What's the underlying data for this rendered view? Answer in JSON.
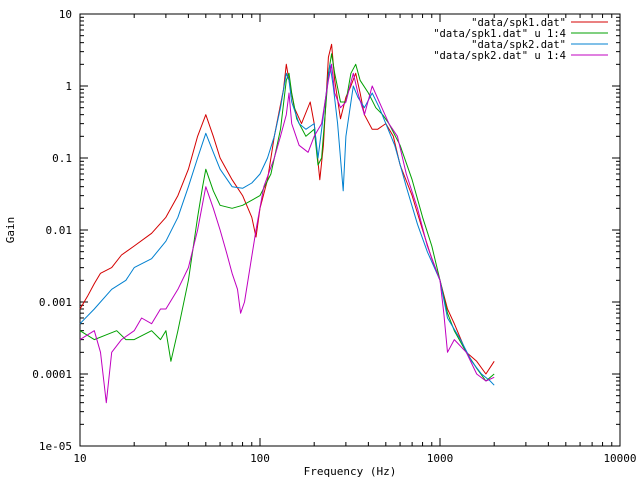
{
  "chart_data": {
    "type": "line",
    "title": "",
    "xlabel": "Frequency (Hz)",
    "ylabel": "Gain",
    "xscale": "log",
    "yscale": "log",
    "xlim": [
      10,
      10000
    ],
    "ylim": [
      1e-05,
      10
    ],
    "grid": false,
    "legend_position": "top-right",
    "x_ticks": [
      {
        "value": 10,
        "label": "10"
      },
      {
        "value": 100,
        "label": "100"
      },
      {
        "value": 1000,
        "label": "1000"
      },
      {
        "value": 10000,
        "label": "10000"
      }
    ],
    "y_ticks": [
      {
        "value": 10,
        "label": "10"
      },
      {
        "value": 1,
        "label": "1"
      },
      {
        "value": 0.1,
        "label": "0.1"
      },
      {
        "value": 0.01,
        "label": "0.01"
      },
      {
        "value": 0.001,
        "label": "0.001"
      },
      {
        "value": 0.0001,
        "label": "0.0001"
      },
      {
        "value": 1e-05,
        "label": "1e-05"
      }
    ],
    "series": [
      {
        "name": "\"data/spk1.dat\"",
        "color": "#d40000",
        "points": [
          [
            10,
            0.0008
          ],
          [
            11,
            0.0012
          ],
          [
            12,
            0.0018
          ],
          [
            13,
            0.0025
          ],
          [
            15,
            0.003
          ],
          [
            17,
            0.0045
          ],
          [
            20,
            0.006
          ],
          [
            25,
            0.009
          ],
          [
            30,
            0.015
          ],
          [
            35,
            0.03
          ],
          [
            40,
            0.07
          ],
          [
            45,
            0.2
          ],
          [
            50,
            0.4
          ],
          [
            55,
            0.2
          ],
          [
            60,
            0.1
          ],
          [
            70,
            0.05
          ],
          [
            80,
            0.03
          ],
          [
            90,
            0.015
          ],
          [
            95,
            0.008
          ],
          [
            100,
            0.02
          ],
          [
            110,
            0.05
          ],
          [
            120,
            0.2
          ],
          [
            135,
            0.9
          ],
          [
            140,
            2.0
          ],
          [
            145,
            1.2
          ],
          [
            155,
            0.5
          ],
          [
            170,
            0.3
          ],
          [
            190,
            0.6
          ],
          [
            200,
            0.3
          ],
          [
            215,
            0.05
          ],
          [
            225,
            0.15
          ],
          [
            240,
            2.5
          ],
          [
            250,
            3.8
          ],
          [
            260,
            1.2
          ],
          [
            280,
            0.35
          ],
          [
            300,
            0.7
          ],
          [
            320,
            1.0
          ],
          [
            340,
            1.5
          ],
          [
            360,
            0.8
          ],
          [
            380,
            0.4
          ],
          [
            420,
            0.25
          ],
          [
            450,
            0.25
          ],
          [
            500,
            0.3
          ],
          [
            550,
            0.2
          ],
          [
            600,
            0.08
          ],
          [
            700,
            0.03
          ],
          [
            800,
            0.01
          ],
          [
            900,
            0.004
          ],
          [
            1000,
            0.002
          ],
          [
            1100,
            0.0008
          ],
          [
            1200,
            0.0005
          ],
          [
            1400,
            0.0002
          ],
          [
            1600,
            0.00015
          ],
          [
            1800,
            0.0001
          ],
          [
            2000,
            0.00015
          ]
        ]
      },
      {
        "name": "\"data/spk1.dat\" u 1:4",
        "color": "#00a000",
        "points": [
          [
            10,
            0.0004
          ],
          [
            12,
            0.0003
          ],
          [
            14,
            0.00035
          ],
          [
            16,
            0.0004
          ],
          [
            18,
            0.0003
          ],
          [
            20,
            0.0003
          ],
          [
            25,
            0.0004
          ],
          [
            28,
            0.0003
          ],
          [
            30,
            0.0004
          ],
          [
            32,
            0.00015
          ],
          [
            35,
            0.0004
          ],
          [
            40,
            0.002
          ],
          [
            45,
            0.015
          ],
          [
            48,
            0.04
          ],
          [
            50,
            0.07
          ],
          [
            55,
            0.035
          ],
          [
            60,
            0.022
          ],
          [
            70,
            0.02
          ],
          [
            80,
            0.022
          ],
          [
            100,
            0.03
          ],
          [
            115,
            0.06
          ],
          [
            130,
            0.25
          ],
          [
            140,
            1.2
          ],
          [
            145,
            1.5
          ],
          [
            150,
            0.8
          ],
          [
            160,
            0.35
          ],
          [
            180,
            0.2
          ],
          [
            200,
            0.25
          ],
          [
            210,
            0.08
          ],
          [
            220,
            0.1
          ],
          [
            240,
            1.5
          ],
          [
            250,
            2.8
          ],
          [
            260,
            1.5
          ],
          [
            280,
            0.6
          ],
          [
            300,
            0.6
          ],
          [
            320,
            1.5
          ],
          [
            340,
            2.0
          ],
          [
            360,
            1.2
          ],
          [
            400,
            0.8
          ],
          [
            440,
            0.5
          ],
          [
            480,
            0.4
          ],
          [
            520,
            0.3
          ],
          [
            600,
            0.15
          ],
          [
            700,
            0.05
          ],
          [
            800,
            0.015
          ],
          [
            900,
            0.006
          ],
          [
            1000,
            0.002
          ],
          [
            1100,
            0.0007
          ],
          [
            1200,
            0.0004
          ],
          [
            1400,
            0.0002
          ],
          [
            1600,
            0.00012
          ],
          [
            1800,
            8e-05
          ],
          [
            2000,
            0.0001
          ]
        ]
      },
      {
        "name": "\"data/spk2.dat\"",
        "color": "#0080d0",
        "points": [
          [
            10,
            0.0005
          ],
          [
            12,
            0.0008
          ],
          [
            15,
            0.0015
          ],
          [
            18,
            0.002
          ],
          [
            20,
            0.003
          ],
          [
            25,
            0.004
          ],
          [
            30,
            0.007
          ],
          [
            35,
            0.015
          ],
          [
            40,
            0.04
          ],
          [
            45,
            0.1
          ],
          [
            50,
            0.22
          ],
          [
            55,
            0.12
          ],
          [
            60,
            0.07
          ],
          [
            70,
            0.04
          ],
          [
            80,
            0.038
          ],
          [
            90,
            0.045
          ],
          [
            100,
            0.06
          ],
          [
            110,
            0.1
          ],
          [
            120,
            0.2
          ],
          [
            130,
            0.5
          ],
          [
            140,
            1.5
          ],
          [
            145,
            1.2
          ],
          [
            150,
            0.6
          ],
          [
            165,
            0.3
          ],
          [
            180,
            0.25
          ],
          [
            200,
            0.3
          ],
          [
            210,
            0.1
          ],
          [
            230,
            0.6
          ],
          [
            245,
            2.0
          ],
          [
            255,
            1.0
          ],
          [
            270,
            0.3
          ],
          [
            290,
            0.035
          ],
          [
            300,
            0.2
          ],
          [
            330,
            1.0
          ],
          [
            350,
            0.7
          ],
          [
            380,
            0.5
          ],
          [
            420,
            0.8
          ],
          [
            460,
            0.5
          ],
          [
            500,
            0.3
          ],
          [
            560,
            0.15
          ],
          [
            650,
            0.04
          ],
          [
            750,
            0.012
          ],
          [
            850,
            0.005
          ],
          [
            1000,
            0.002
          ],
          [
            1100,
            0.0006
          ],
          [
            1300,
            0.0003
          ],
          [
            1500,
            0.00015
          ],
          [
            1700,
            0.0001
          ],
          [
            1900,
            8e-05
          ],
          [
            2000,
            7e-05
          ]
        ]
      },
      {
        "name": "\"data/spk2.dat\" u 1:4",
        "color": "#c000c0",
        "points": [
          [
            10,
            0.0003
          ],
          [
            12,
            0.0004
          ],
          [
            13,
            0.0002
          ],
          [
            14,
            4e-05
          ],
          [
            15,
            0.0002
          ],
          [
            17,
            0.0003
          ],
          [
            20,
            0.0004
          ],
          [
            22,
            0.0006
          ],
          [
            25,
            0.0005
          ],
          [
            28,
            0.0008
          ],
          [
            30,
            0.0008
          ],
          [
            35,
            0.0015
          ],
          [
            40,
            0.003
          ],
          [
            45,
            0.01
          ],
          [
            50,
            0.04
          ],
          [
            55,
            0.02
          ],
          [
            60,
            0.01
          ],
          [
            65,
            0.005
          ],
          [
            70,
            0.0025
          ],
          [
            75,
            0.0015
          ],
          [
            78,
            0.0007
          ],
          [
            82,
            0.001
          ],
          [
            88,
            0.003
          ],
          [
            95,
            0.01
          ],
          [
            105,
            0.04
          ],
          [
            120,
            0.1
          ],
          [
            130,
            0.2
          ],
          [
            140,
            0.4
          ],
          [
            145,
            0.8
          ],
          [
            150,
            0.3
          ],
          [
            165,
            0.15
          ],
          [
            185,
            0.12
          ],
          [
            200,
            0.2
          ],
          [
            220,
            0.3
          ],
          [
            240,
            1.2
          ],
          [
            250,
            2.0
          ],
          [
            260,
            0.8
          ],
          [
            280,
            0.5
          ],
          [
            300,
            0.6
          ],
          [
            330,
            1.5
          ],
          [
            350,
            0.8
          ],
          [
            380,
            0.4
          ],
          [
            420,
            1.0
          ],
          [
            460,
            0.6
          ],
          [
            520,
            0.3
          ],
          [
            580,
            0.2
          ],
          [
            650,
            0.06
          ],
          [
            750,
            0.02
          ],
          [
            850,
            0.006
          ],
          [
            1000,
            0.002
          ],
          [
            1050,
            0.0007
          ],
          [
            1100,
            0.0002
          ],
          [
            1200,
            0.0003
          ],
          [
            1400,
            0.0002
          ],
          [
            1600,
            0.0001
          ],
          [
            1800,
            8e-05
          ],
          [
            2000,
            9e-05
          ]
        ]
      }
    ]
  }
}
